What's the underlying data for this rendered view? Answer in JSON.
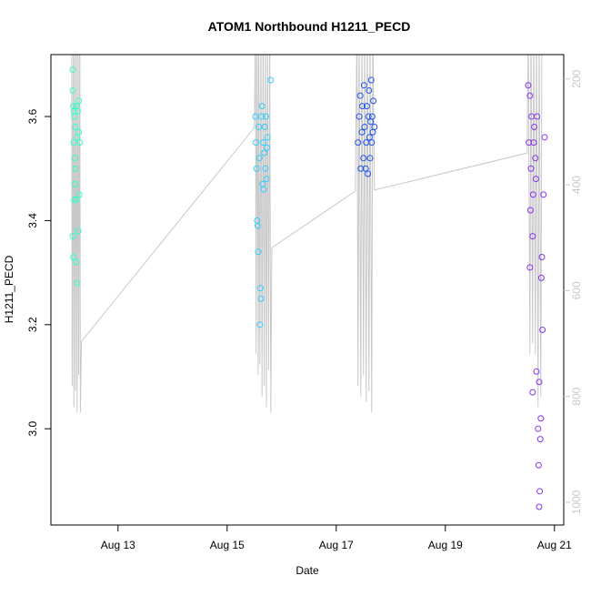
{
  "chart_data": {
    "type": "scatter",
    "title": "ATOM1 Northbound H1211_PECD",
    "xlabel": "Date",
    "ylabel": "H1211_PECD",
    "xlim": [
      11.77,
      21.17
    ],
    "xticks": [
      {
        "value": 13,
        "label": "Aug 13"
      },
      {
        "value": 15,
        "label": "Aug 15"
      },
      {
        "value": 17,
        "label": "Aug 17"
      },
      {
        "value": 19,
        "label": "Aug 19"
      },
      {
        "value": 21,
        "label": "Aug 21"
      }
    ],
    "ylim": [
      2.815,
      3.719
    ],
    "yticks": [
      {
        "value": 3.0,
        "label": "3.0"
      },
      {
        "value": 3.2,
        "label": "3.2"
      },
      {
        "value": 3.4,
        "label": "3.4"
      },
      {
        "value": 3.6,
        "label": "3.6"
      }
    ],
    "y2lim": [
      1043,
      154
    ],
    "y2ticks": [
      200,
      400,
      600,
      800,
      1000
    ],
    "y2color": "#c8c8c8",
    "series": [
      {
        "color": "#33ffcc",
        "x": [
          12.17,
          12.17,
          12.17,
          12.18,
          12.18,
          12.19,
          12.19,
          12.2,
          12.2,
          12.21,
          12.21,
          12.22,
          12.22,
          12.23,
          12.23,
          12.24,
          12.25,
          12.25,
          12.26,
          12.27,
          12.28,
          12.28,
          12.29,
          12.3
        ],
        "values": [
          3.69,
          3.65,
          3.37,
          3.33,
          3.62,
          3.61,
          3.55,
          3.44,
          3.6,
          3.52,
          3.47,
          3.58,
          3.5,
          3.44,
          3.32,
          3.62,
          3.56,
          3.28,
          3.61,
          3.38,
          3.57,
          3.63,
          3.45,
          3.55
        ]
      },
      {
        "color": "#33ccff",
        "x": [
          15.52,
          15.53,
          15.54,
          15.55,
          15.56,
          15.57,
          15.58,
          15.59,
          15.6,
          15.61,
          15.62,
          15.63,
          15.64,
          15.65,
          15.66,
          15.67,
          15.68,
          15.69,
          15.7,
          15.71,
          15.72,
          15.73,
          15.74,
          15.8
        ],
        "values": [
          3.6,
          3.55,
          3.5,
          3.4,
          3.39,
          3.34,
          3.58,
          3.52,
          3.2,
          3.27,
          3.25,
          3.6,
          3.62,
          3.47,
          3.55,
          3.46,
          3.53,
          3.58,
          3.5,
          3.6,
          3.48,
          3.54,
          3.56,
          3.67
        ]
      },
      {
        "color": "#2255ee",
        "x": [
          17.4,
          17.42,
          17.44,
          17.45,
          17.47,
          17.48,
          17.5,
          17.51,
          17.52,
          17.54,
          17.55,
          17.56,
          17.58,
          17.59,
          17.6,
          17.61,
          17.62,
          17.63,
          17.64,
          17.65,
          17.66,
          17.67,
          17.68,
          17.7
        ],
        "values": [
          3.55,
          3.6,
          3.64,
          3.5,
          3.57,
          3.62,
          3.52,
          3.66,
          3.58,
          3.5,
          3.55,
          3.62,
          3.49,
          3.6,
          3.65,
          3.56,
          3.52,
          3.59,
          3.67,
          3.55,
          3.6,
          3.57,
          3.63,
          3.58
        ]
      },
      {
        "color": "#8833ee",
        "x": [
          20.52,
          20.53,
          20.55,
          20.56,
          20.57,
          20.58,
          20.6,
          20.61,
          20.62,
          20.63,
          20.65,
          20.66,
          20.67,
          20.68,
          20.7,
          20.71,
          20.72,
          20.73,
          20.74,
          20.75,
          20.76,
          20.78,
          20.8,
          20.82,
          20.55,
          20.6,
          20.72,
          20.77
        ],
        "values": [
          3.66,
          3.55,
          3.31,
          3.42,
          3.5,
          3.6,
          3.07,
          3.45,
          3.55,
          3.58,
          3.52,
          3.48,
          3.11,
          3.6,
          3.0,
          2.93,
          2.85,
          2.88,
          2.98,
          3.02,
          3.29,
          3.19,
          3.45,
          3.56,
          3.64,
          3.37,
          3.09,
          3.33
        ]
      },
      {
        "type": "line",
        "axis": "y2",
        "color": "#c8c8c8",
        "x": [
          12.15,
          12.16,
          12.18,
          12.19,
          12.21,
          12.22,
          12.24,
          12.25,
          12.27,
          12.28,
          12.3,
          12.31,
          12.33,
          15.5,
          15.52,
          15.53,
          15.55,
          15.57,
          15.58,
          15.6,
          15.62,
          15.64,
          15.66,
          15.68,
          15.7,
          15.72,
          15.74,
          15.76,
          15.78,
          15.8,
          15.82,
          17.35,
          17.38,
          17.4,
          17.42,
          17.45,
          17.47,
          17.5,
          17.52,
          17.55,
          17.57,
          17.6,
          17.62,
          17.65,
          17.67,
          17.7,
          20.5,
          20.52,
          20.55,
          20.57,
          20.6,
          20.62,
          20.65,
          20.67,
          20.7,
          20.72,
          20.75,
          20.77,
          20.8
        ],
        "values": [
          100,
          780,
          100,
          820,
          100,
          790,
          110,
          830,
          100,
          760,
          100,
          830,
          696,
          292,
          100,
          720,
          100,
          760,
          100,
          740,
          100,
          800,
          100,
          780,
          100,
          820,
          100,
          750,
          100,
          830,
          519,
          412,
          100,
          780,
          100,
          800,
          100,
          760,
          100,
          810,
          100,
          790,
          100,
          830,
          100,
          410,
          340,
          100,
          720,
          100,
          700,
          100,
          720,
          100,
          820,
          100,
          800,
          100,
          150
        ]
      }
    ]
  }
}
